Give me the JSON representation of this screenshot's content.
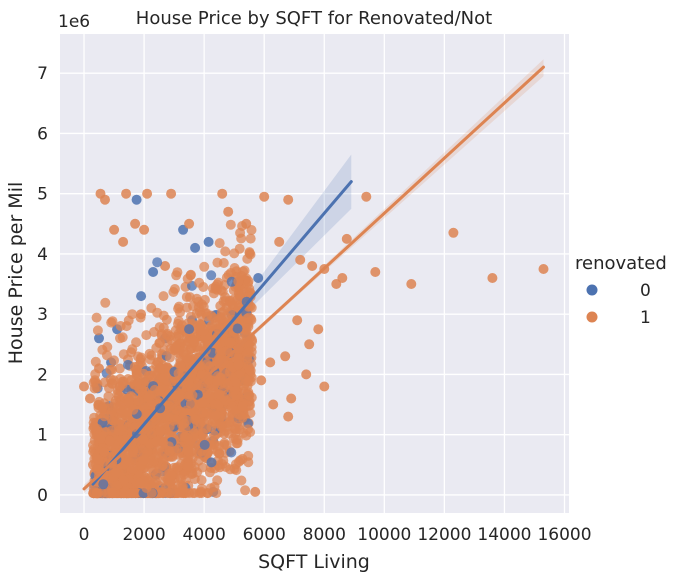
{
  "chart_data": {
    "type": "scatter",
    "title": "House Price by SQFT for Renovated/Not",
    "xlabel": "SQFT Living",
    "ylabel": "House Price per Mil",
    "y_offset_label": "1e6",
    "xlim": [
      -800,
      16150
    ],
    "ylim": [
      -300000,
      7650000
    ],
    "x_ticks": [
      0,
      2000,
      4000,
      6000,
      8000,
      10000,
      12000,
      14000,
      16000
    ],
    "x_tick_labels": [
      "0",
      "2000",
      "4000",
      "6000",
      "8000",
      "10000",
      "12000",
      "14000",
      "16000"
    ],
    "y_ticks": [
      0,
      1000000,
      2000000,
      3000000,
      4000000,
      5000000,
      6000000,
      7000000
    ],
    "y_tick_labels": [
      "0",
      "1",
      "2",
      "3",
      "4",
      "5",
      "6",
      "7"
    ],
    "grid": true,
    "legend": {
      "title": "renovated",
      "placement": "right",
      "entries": [
        "0",
        "1"
      ]
    },
    "series": [
      {
        "name": "0",
        "color": "#4c72b0",
        "points": [
          [
            1750,
            4900000
          ],
          [
            2300,
            3700000
          ],
          [
            3300,
            4400000
          ],
          [
            3700,
            4100000
          ],
          [
            4150,
            4200000
          ],
          [
            4300,
            50000
          ],
          [
            4700,
            1500000
          ],
          [
            4300,
            900000
          ],
          [
            1100,
            2750000
          ],
          [
            1900,
            3300000
          ],
          [
            2700,
            2600000
          ],
          [
            3200,
            1400000
          ],
          [
            900,
            2200000
          ],
          [
            500,
            2600000
          ],
          [
            4900,
            3000000
          ],
          [
            5200,
            3300000
          ],
          [
            5800,
            3600000
          ],
          [
            2500,
            1900000
          ],
          [
            3600,
            2900000
          ],
          [
            600,
            400000
          ]
        ],
        "regression": {
          "x": [
            300,
            8900
          ],
          "y": [
            180000,
            5200000
          ]
        },
        "ci_band": {
          "x": [
            300,
            4500,
            8900
          ],
          "upper": [
            320000,
            2700000,
            5650000
          ],
          "lower": [
            40000,
            2580000,
            4750000
          ]
        }
      },
      {
        "name": "1",
        "color": "#dd8452",
        "points": [
          [
            0,
            1800000
          ],
          [
            550,
            5000000
          ],
          [
            700,
            4900000
          ],
          [
            1400,
            5000000
          ],
          [
            2100,
            5000000
          ],
          [
            2900,
            5000000
          ],
          [
            4600,
            5000000
          ],
          [
            6000,
            4950000
          ],
          [
            6800,
            4900000
          ],
          [
            1000,
            4400000
          ],
          [
            1300,
            4200000
          ],
          [
            2000,
            4400000
          ],
          [
            2700,
            3800000
          ],
          [
            3500,
            4500000
          ],
          [
            5400,
            4500000
          ],
          [
            6500,
            4200000
          ],
          [
            7200,
            3900000
          ],
          [
            7600,
            3800000
          ],
          [
            8000,
            3750000
          ],
          [
            8400,
            3500000
          ],
          [
            8600,
            3600000
          ],
          [
            8750,
            4250000
          ],
          [
            9400,
            4950000
          ],
          [
            9700,
            3700000
          ],
          [
            10900,
            3500000
          ],
          [
            12300,
            4350000
          ],
          [
            13600,
            3600000
          ],
          [
            15300,
            3750000
          ],
          [
            8000,
            1800000
          ],
          [
            7100,
            2900000
          ],
          [
            7500,
            2500000
          ],
          [
            6700,
            2300000
          ],
          [
            6900,
            1600000
          ],
          [
            6300,
            1500000
          ],
          [
            5700,
            50000
          ],
          [
            5900,
            1900000
          ],
          [
            5100,
            1200000
          ],
          [
            3900,
            1800000
          ],
          [
            1700,
            4500000
          ],
          [
            600,
            900000
          ],
          [
            400,
            1200000
          ],
          [
            1900,
            3000000
          ],
          [
            300,
            500000
          ],
          [
            6800,
            1300000
          ],
          [
            7400,
            2000000
          ],
          [
            6200,
            2200000
          ],
          [
            4800,
            4700000
          ],
          [
            7800,
            2750000
          ],
          [
            200,
            1600000
          ],
          [
            500,
            2100000
          ]
        ],
        "regression": {
          "x": [
            0,
            15300
          ],
          "y": [
            100000,
            7100000
          ]
        },
        "ci_band": {
          "x": [
            0,
            7000,
            15300
          ],
          "upper": [
            170000,
            3340000,
            7230000
          ],
          "lower": [
            30000,
            3260000,
            6950000
          ]
        }
      }
    ]
  }
}
